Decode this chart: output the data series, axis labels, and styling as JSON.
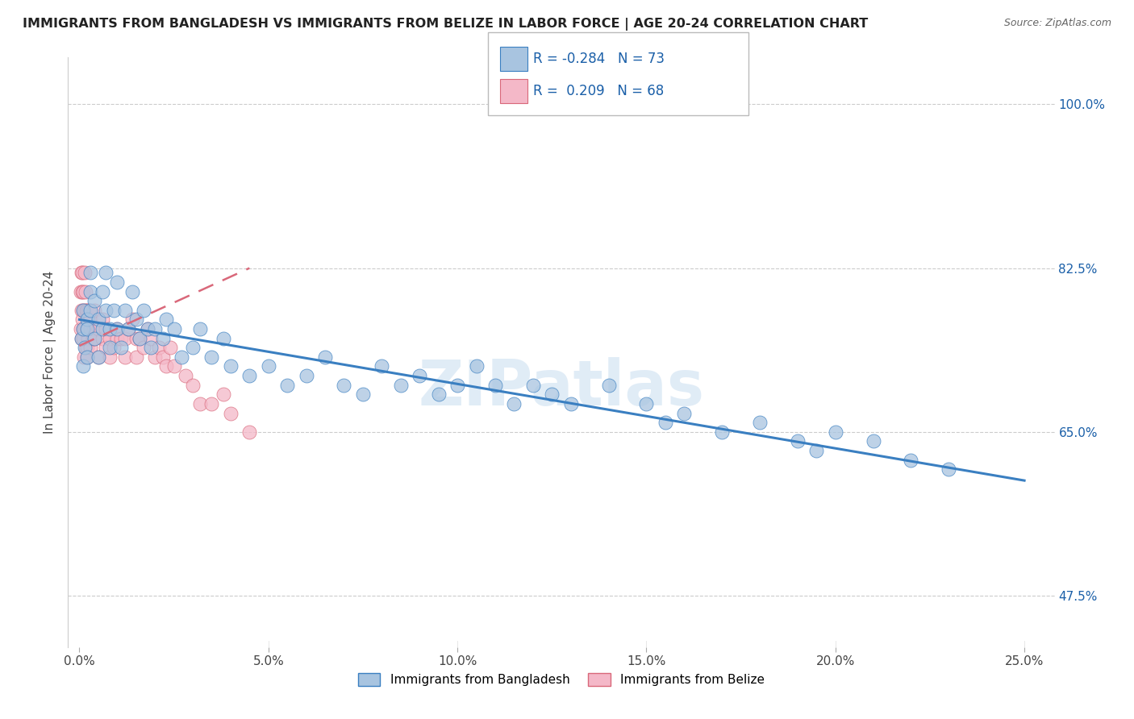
{
  "title": "IMMIGRANTS FROM BANGLADESH VS IMMIGRANTS FROM BELIZE IN LABOR FORCE | AGE 20-24 CORRELATION CHART",
  "source": "Source: ZipAtlas.com",
  "xlabel_ticks": [
    "0.0%",
    "5.0%",
    "10.0%",
    "15.0%",
    "20.0%",
    "25.0%"
  ],
  "xlabel_vals": [
    0.0,
    0.05,
    0.1,
    0.15,
    0.2,
    0.25
  ],
  "ylabel_ticks": [
    "47.5%",
    "65.0%",
    "82.5%",
    "100.0%"
  ],
  "ylabel_vals": [
    0.475,
    0.65,
    0.825,
    1.0
  ],
  "ylabel_label": "In Labor Force | Age 20-24",
  "r_bangladesh": -0.284,
  "n_bangladesh": 73,
  "r_belize": 0.209,
  "n_belize": 68,
  "color_bangladesh": "#a8c4e0",
  "color_belize": "#f4b8c8",
  "line_color_bangladesh": "#3a7fc1",
  "line_color_belize": "#d9687a",
  "watermark": "ZIPatlas",
  "legend_r_color": "#1a5fa8",
  "bangladesh_x": [
    0.0005,
    0.001,
    0.001,
    0.001,
    0.0015,
    0.002,
    0.002,
    0.002,
    0.003,
    0.003,
    0.003,
    0.004,
    0.004,
    0.005,
    0.005,
    0.006,
    0.006,
    0.007,
    0.007,
    0.008,
    0.008,
    0.009,
    0.01,
    0.01,
    0.011,
    0.012,
    0.013,
    0.014,
    0.015,
    0.016,
    0.017,
    0.018,
    0.019,
    0.02,
    0.022,
    0.023,
    0.025,
    0.027,
    0.03,
    0.032,
    0.035,
    0.038,
    0.04,
    0.045,
    0.05,
    0.055,
    0.06,
    0.065,
    0.07,
    0.075,
    0.08,
    0.085,
    0.09,
    0.095,
    0.1,
    0.105,
    0.11,
    0.115,
    0.12,
    0.125,
    0.13,
    0.14,
    0.15,
    0.155,
    0.16,
    0.17,
    0.18,
    0.19,
    0.195,
    0.2,
    0.21,
    0.22,
    0.23
  ],
  "bangladesh_y": [
    0.75,
    0.76,
    0.78,
    0.72,
    0.74,
    0.73,
    0.77,
    0.76,
    0.8,
    0.78,
    0.82,
    0.75,
    0.79,
    0.77,
    0.73,
    0.76,
    0.8,
    0.78,
    0.82,
    0.76,
    0.74,
    0.78,
    0.81,
    0.76,
    0.74,
    0.78,
    0.76,
    0.8,
    0.77,
    0.75,
    0.78,
    0.76,
    0.74,
    0.76,
    0.75,
    0.77,
    0.76,
    0.73,
    0.74,
    0.76,
    0.73,
    0.75,
    0.72,
    0.71,
    0.72,
    0.7,
    0.71,
    0.73,
    0.7,
    0.69,
    0.72,
    0.7,
    0.71,
    0.69,
    0.7,
    0.72,
    0.7,
    0.68,
    0.7,
    0.69,
    0.68,
    0.7,
    0.68,
    0.66,
    0.67,
    0.65,
    0.66,
    0.64,
    0.63,
    0.65,
    0.64,
    0.62,
    0.61
  ],
  "belize_x": [
    0.0003,
    0.0004,
    0.0005,
    0.0005,
    0.0006,
    0.0007,
    0.0008,
    0.0008,
    0.001,
    0.001,
    0.001,
    0.001,
    0.0012,
    0.0013,
    0.0014,
    0.0015,
    0.0016,
    0.0017,
    0.0018,
    0.002,
    0.002,
    0.002,
    0.002,
    0.0022,
    0.0023,
    0.0025,
    0.003,
    0.003,
    0.003,
    0.0035,
    0.004,
    0.004,
    0.004,
    0.005,
    0.005,
    0.006,
    0.006,
    0.007,
    0.007,
    0.008,
    0.008,
    0.009,
    0.01,
    0.01,
    0.011,
    0.012,
    0.012,
    0.013,
    0.014,
    0.015,
    0.015,
    0.016,
    0.017,
    0.018,
    0.019,
    0.02,
    0.021,
    0.022,
    0.023,
    0.024,
    0.025,
    0.028,
    0.03,
    0.032,
    0.035,
    0.038,
    0.04,
    0.045
  ],
  "belize_y": [
    0.76,
    0.8,
    0.82,
    0.78,
    0.75,
    0.82,
    0.8,
    0.77,
    0.78,
    0.8,
    0.75,
    0.76,
    0.73,
    0.82,
    0.78,
    0.76,
    0.74,
    0.8,
    0.78,
    0.76,
    0.74,
    0.78,
    0.73,
    0.76,
    0.75,
    0.78,
    0.76,
    0.74,
    0.77,
    0.75,
    0.76,
    0.78,
    0.75,
    0.73,
    0.76,
    0.75,
    0.77,
    0.76,
    0.74,
    0.75,
    0.73,
    0.74,
    0.75,
    0.76,
    0.75,
    0.73,
    0.75,
    0.76,
    0.77,
    0.75,
    0.73,
    0.75,
    0.74,
    0.76,
    0.75,
    0.73,
    0.74,
    0.73,
    0.72,
    0.74,
    0.72,
    0.71,
    0.7,
    0.68,
    0.68,
    0.69,
    0.67,
    0.65
  ],
  "bd_line_x": [
    0.0,
    0.25
  ],
  "bd_line_y": [
    0.77,
    0.598
  ],
  "bz_line_x": [
    0.0,
    0.045
  ],
  "bz_line_y": [
    0.742,
    0.825
  ],
  "xlim": [
    -0.003,
    0.258
  ],
  "ylim": [
    0.42,
    1.05
  ]
}
